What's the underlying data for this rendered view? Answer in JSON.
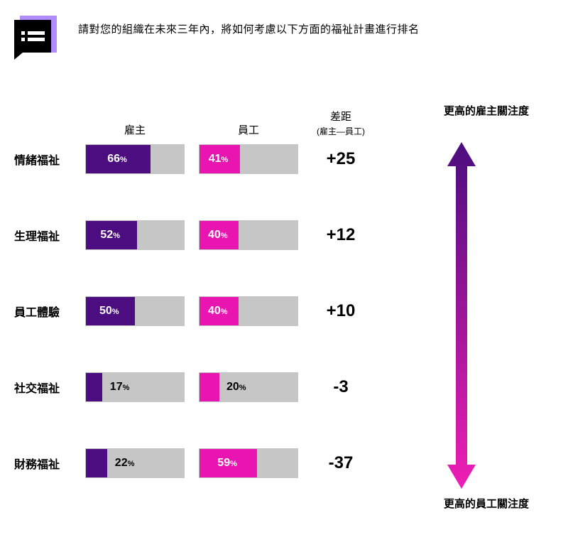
{
  "prompt": "請對您的組織在未來三年內，將如何考慮以下方面的福祉計畫進行排名",
  "columns": {
    "employer": "雇主",
    "employee": "員工",
    "gap": "差距",
    "gapSub": "(雇主—員工)"
  },
  "arrowLabels": {
    "top": "更高的雇主關注度",
    "bottom": "更高的員工關注度"
  },
  "colors": {
    "employerBar": "#4b0d7f",
    "employeeBar": "#e815b1",
    "barBackground": "#c6c6c6",
    "textOnDark": "#ffffff",
    "textOnLight": "#000000",
    "gradientTop": "#4b0d7f",
    "gradientBottom": "#ef1fb5",
    "iconAccent": "#b18cff"
  },
  "chart": {
    "barWidthPx": 140,
    "barHeightPx": 42,
    "rowGapPx": 62
  },
  "rows": [
    {
      "label": "情緒福祉",
      "employer": 66,
      "employee": 41,
      "diff": "+25",
      "empLabelInside": true,
      "eeLabelInside": true
    },
    {
      "label": "生理福祉",
      "employer": 52,
      "employee": 40,
      "diff": "+12",
      "empLabelInside": true,
      "eeLabelInside": true
    },
    {
      "label": "員工體驗",
      "employer": 50,
      "employee": 40,
      "diff": "+10",
      "empLabelInside": true,
      "eeLabelInside": true
    },
    {
      "label": "社交福祉",
      "employer": 17,
      "employee": 20,
      "diff": "-3",
      "empLabelInside": false,
      "eeLabelInside": false
    },
    {
      "label": "財務福祉",
      "employer": 22,
      "employee": 59,
      "diff": "-37",
      "empLabelInside": false,
      "eeLabelInside": true
    }
  ]
}
